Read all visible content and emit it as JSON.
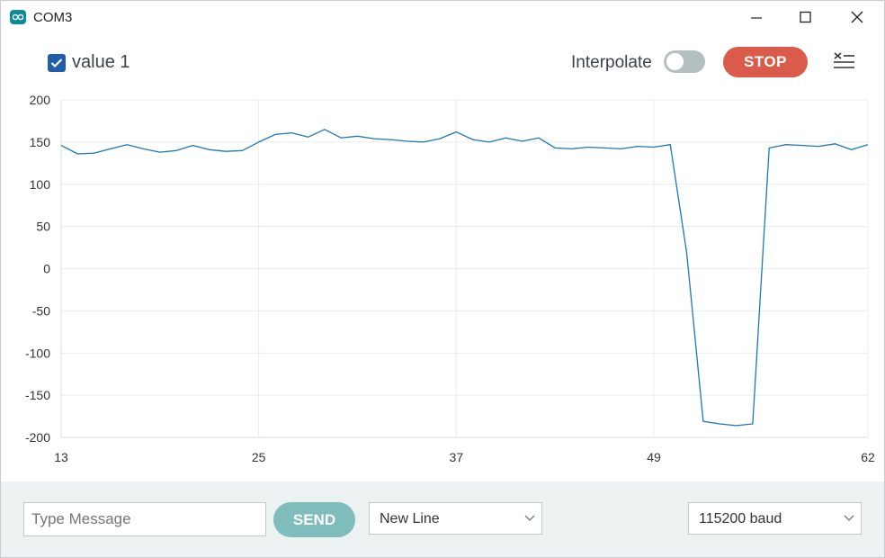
{
  "window": {
    "title": "COM3"
  },
  "toolbar": {
    "series_label": "value 1",
    "series_checked": true,
    "interpolate_label": "Interpolate",
    "interpolate_on": false,
    "stop_label": "STOP"
  },
  "chart_data": {
    "type": "line",
    "title": "",
    "xlabel": "",
    "ylabel": "",
    "xlim": [
      13,
      62
    ],
    "ylim": [
      -200,
      200
    ],
    "x_ticks": [
      13,
      25,
      37,
      49,
      62
    ],
    "y_ticks": [
      200,
      150,
      100,
      50,
      0,
      -50,
      -100,
      -150,
      -200
    ],
    "grid": true,
    "series": [
      {
        "name": "value 1",
        "color": "#1f77b4",
        "x": [
          13,
          14,
          15,
          16,
          17,
          18,
          19,
          20,
          21,
          22,
          23,
          24,
          25,
          26,
          27,
          28,
          29,
          30,
          31,
          32,
          33,
          34,
          35,
          36,
          37,
          38,
          39,
          40,
          41,
          42,
          43,
          44,
          45,
          46,
          47,
          48,
          49,
          50,
          51,
          52,
          53,
          54,
          55,
          56,
          57,
          58,
          59,
          60,
          61,
          62
        ],
        "y": [
          146,
          136,
          137,
          142,
          147,
          142,
          138,
          140,
          146,
          141,
          139,
          140,
          150,
          159,
          161,
          156,
          165,
          155,
          157,
          154,
          153,
          151,
          150,
          154,
          162,
          153,
          150,
          155,
          151,
          155,
          143,
          142,
          144,
          143,
          142,
          145,
          144,
          147,
          18,
          -181,
          -184,
          -186,
          -184,
          143,
          147,
          146,
          145,
          148,
          141,
          147
        ]
      }
    ]
  },
  "footer": {
    "message_placeholder": "Type Message",
    "message_value": "",
    "send_label": "SEND",
    "line_ending": "New Line",
    "baud_rate": "115200 baud"
  }
}
